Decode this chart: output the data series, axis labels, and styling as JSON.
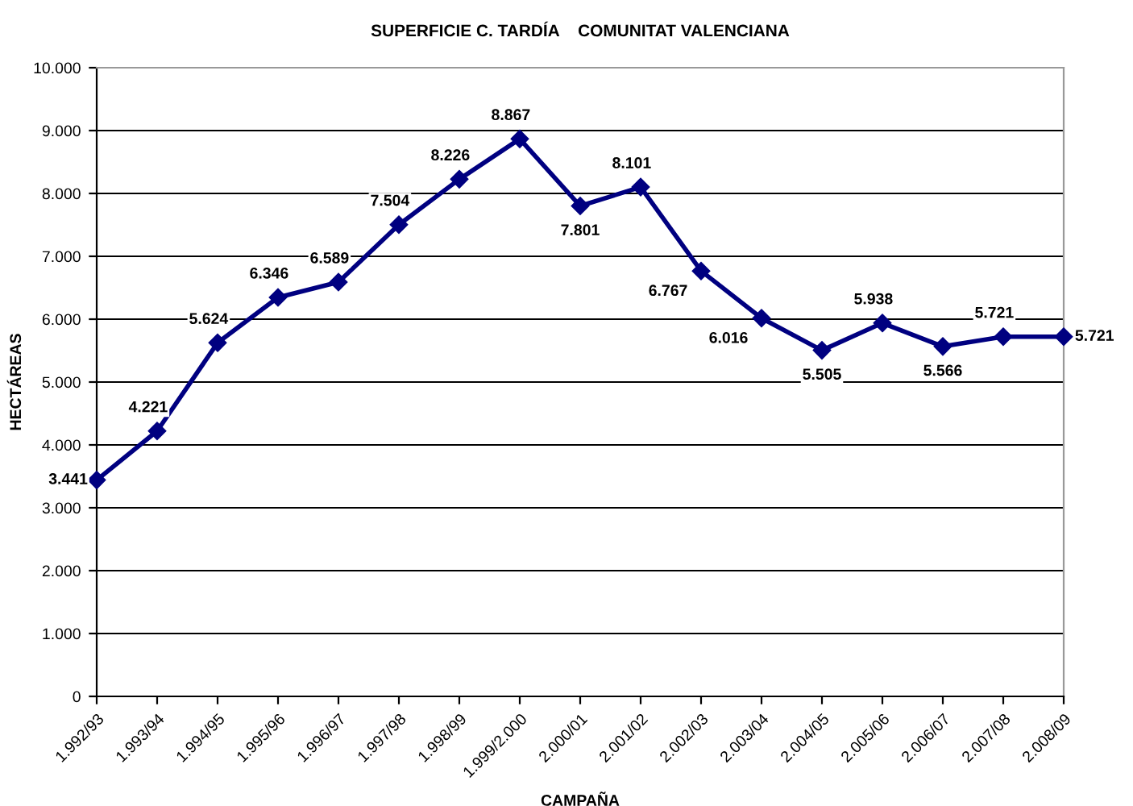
{
  "chart_data": {
    "type": "line",
    "title": "SUPERFICIE C. TARDÍA    COMUNITAT VALENCIANA",
    "xlabel": "CAMPAÑA",
    "ylabel": "HECTÁREAS",
    "categories": [
      "1.992/93",
      "1.993/94",
      "1.994/95",
      "1.995/96",
      "1.996/97",
      "1.997/98",
      "1.998/99",
      "1.999/2.000",
      "2.000/01",
      "2.001/02",
      "2.002/03",
      "2.003/04",
      "2.004/05",
      "2.005/06",
      "2.006/07",
      "2.007/08",
      "2.008/09"
    ],
    "series": [
      {
        "color": "#000080",
        "values": [
          3441,
          4221,
          5624,
          6346,
          6589,
          7504,
          8226,
          8867,
          7801,
          8101,
          6767,
          6016,
          5505,
          5938,
          5566,
          5721,
          5721
        ],
        "value_labels": [
          "3.441",
          "4.221",
          "5.624",
          "6.346",
          "6.589",
          "7.504",
          "8.226",
          "8.867",
          "7.801",
          "8.101",
          "6.767",
          "6.016",
          "5.505",
          "5.938",
          "5.566",
          "5.721",
          "5.721"
        ]
      }
    ],
    "ylim": [
      0,
      10000
    ],
    "yticks": [
      0,
      {
        "value": 1000,
        "label": "1.000"
      },
      {
        "value": 2000,
        "label": "2.000"
      },
      {
        "value": 3000,
        "label": "3.000"
      },
      {
        "value": 4000,
        "label": "4.000"
      },
      {
        "value": 5000,
        "label": "5.000"
      },
      {
        "value": 6000,
        "label": "6.000"
      },
      {
        "value": 7000,
        "label": "7.000"
      },
      {
        "value": 8000,
        "label": "8.000"
      },
      {
        "value": 9000,
        "label": "9.000"
      },
      {
        "value": 10000,
        "label": "10.000"
      }
    ],
    "grid": "y",
    "marker": "diamond",
    "line_style": "solid"
  }
}
